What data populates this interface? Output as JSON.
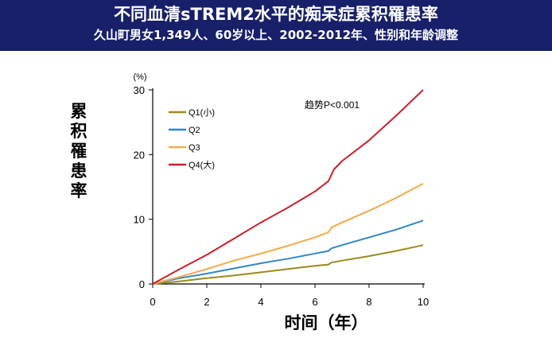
{
  "header": {
    "title": "不同血清sTREM2水平的痴呆症累积罹患率",
    "subtitle": "久山町男女1,349人、60岁以上、2002-2012年、性别和年龄调整"
  },
  "colors": {
    "header_bg": "#18206a",
    "q1": "#9b8a1c",
    "q2": "#2f86c8",
    "q3": "#f5a84a",
    "q4": "#c8202a"
  },
  "chart_data": {
    "type": "line",
    "title": "不同血清sTREM2水平的痴呆症累积罹患率",
    "xlabel": "时间（年）",
    "ylabel": "累积罹患率",
    "yunit": "(%)",
    "xlim": [
      0,
      10
    ],
    "ylim": [
      0,
      30
    ],
    "xticks": [
      0,
      2,
      4,
      6,
      8,
      10
    ],
    "yticks": [
      0,
      10,
      20,
      30
    ],
    "grid": false,
    "legend_position": "top-left",
    "annotation": "趋势P<0.001",
    "series": [
      {
        "name": "Q1(小)",
        "color": "#9b8a1c",
        "x": [
          0,
          1,
          2,
          3,
          4,
          5,
          6,
          6.5,
          6.6,
          7,
          8,
          9,
          10
        ],
        "y": [
          0,
          0.4,
          0.9,
          1.3,
          1.8,
          2.3,
          2.8,
          3.0,
          3.3,
          3.6,
          4.3,
          5.1,
          6.0
        ]
      },
      {
        "name": "Q2",
        "color": "#2f86c8",
        "x": [
          0,
          1,
          2,
          3,
          4,
          5,
          6,
          6.5,
          6.6,
          7,
          8,
          9,
          10
        ],
        "y": [
          0,
          0.9,
          1.6,
          2.4,
          3.2,
          3.9,
          4.7,
          5.1,
          5.5,
          6.0,
          7.2,
          8.4,
          9.8
        ]
      },
      {
        "name": "Q3",
        "color": "#f5a84a",
        "x": [
          0,
          1,
          2,
          3,
          4,
          5,
          6,
          6.5,
          6.6,
          7,
          8,
          9,
          10
        ],
        "y": [
          0,
          1.1,
          2.3,
          3.6,
          4.7,
          5.9,
          7.2,
          8.0,
          8.7,
          9.5,
          11.3,
          13.3,
          15.5
        ]
      },
      {
        "name": "Q4(大)",
        "color": "#c8202a",
        "x": [
          0,
          1,
          2,
          3,
          4,
          5,
          6,
          6.5,
          6.7,
          7,
          8,
          9,
          10
        ],
        "y": [
          0,
          2.3,
          4.5,
          7.0,
          9.5,
          11.8,
          14.3,
          15.9,
          17.7,
          19.0,
          22.2,
          26.0,
          30.0
        ]
      }
    ]
  }
}
